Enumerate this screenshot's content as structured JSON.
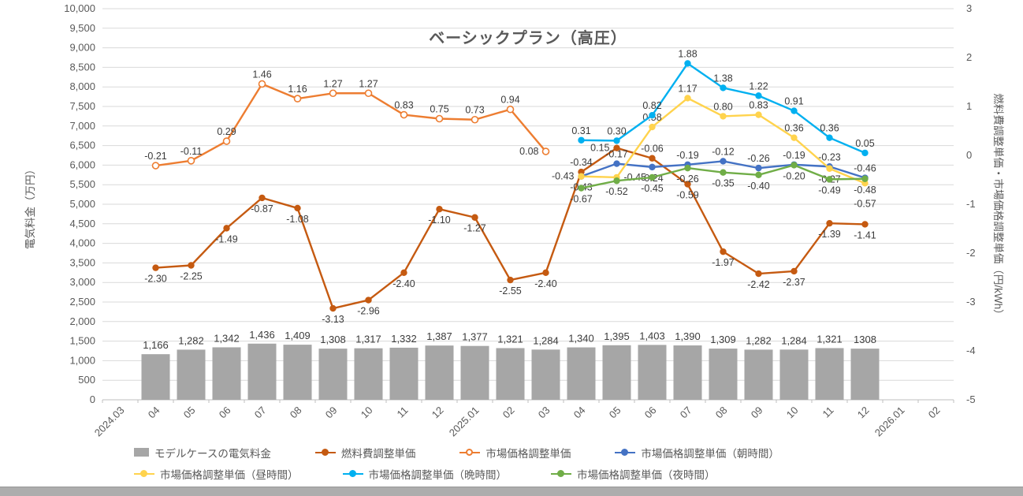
{
  "chart_data": {
    "type": "combo",
    "title": "ベーシックプラン（高圧）",
    "grid": true,
    "legend_position": "bottom",
    "categories": [
      "2024.03",
      "04",
      "05",
      "06",
      "07",
      "08",
      "09",
      "10",
      "11",
      "12",
      "2025.01",
      "02",
      "03",
      "04",
      "05",
      "06",
      "07",
      "08",
      "09",
      "10",
      "11",
      "12",
      "2026.01",
      "02"
    ],
    "left_axis": {
      "label": "電気料金（万円）",
      "min": 0,
      "max": 10000,
      "step": 500,
      "ticks": [
        "0",
        "500",
        "1,000",
        "1,500",
        "2,000",
        "2,500",
        "3,000",
        "3,500",
        "4,000",
        "4,500",
        "5,000",
        "5,500",
        "6,000",
        "6,500",
        "7,000",
        "7,500",
        "8,000",
        "8,500",
        "9,000",
        "9,500",
        "10,000"
      ]
    },
    "right_axis": {
      "label": "燃料費調整単価・市場価格調整単価（円/kWh）",
      "min": -5,
      "max": 3,
      "step": 1,
      "ticks": [
        "-5",
        "-4",
        "-3",
        "-2",
        "-1",
        "0",
        "1",
        "2",
        "3"
      ]
    },
    "bar_series": {
      "key": "model-case-bill",
      "name": "モデルケースの電気料金",
      "color": "#A6A6A6",
      "start_index": 1,
      "values": [
        1166,
        1282,
        1342,
        1436,
        1409,
        1308,
        1317,
        1332,
        1387,
        1377,
        1321,
        1284,
        1340,
        1395,
        1403,
        1390,
        1309,
        1282,
        1284,
        1321,
        1308
      ],
      "labels": [
        "1,166",
        "1,282",
        "1,342",
        "1,436",
        "1,409",
        "1,308",
        "1,317",
        "1,332",
        "1,387",
        "1,377",
        "1,321",
        "1,284",
        "1,340",
        "1,395",
        "1,403",
        "1,390",
        "1,309",
        "1,282",
        "1,284",
        "1,321",
        "1308"
      ]
    },
    "line_series": [
      {
        "key": "fuel-cost",
        "name": "燃料費調整単価",
        "color": "#C55A11",
        "marker": "filled",
        "start_index": 1,
        "values": [
          -2.3,
          -2.25,
          -1.49,
          -0.87,
          -1.08,
          -3.13,
          -2.96,
          -2.4,
          -1.1,
          -1.27,
          -2.55,
          -2.4,
          -0.34,
          0.15,
          -0.06,
          -0.59,
          -1.97,
          -2.42,
          -2.37,
          -1.39,
          -1.41
        ],
        "labels": [
          "-2.30",
          "-2.25",
          "-1.49",
          "-0.87",
          "-1.08",
          "-3.13",
          "-2.96",
          "-2.40",
          "-1.10",
          "-1.27",
          "-2.55",
          "-2.40",
          "-0.34",
          "0.15",
          "-0.06",
          "-0.59",
          "-1.97",
          "-2.42",
          "-2.37",
          "-1.39",
          "-1.41"
        ],
        "label_pos": [
          "b",
          "b",
          "b",
          "b",
          "b",
          "b",
          "b",
          "b",
          "b",
          "b",
          "b",
          "b",
          "a",
          "l",
          "a",
          "b",
          "b",
          "b",
          "b",
          "b",
          "b"
        ]
      },
      {
        "key": "market-price",
        "name": "市場価格調整単価",
        "color": "#ED7D31",
        "marker": "open",
        "start_index": 1,
        "values": [
          -0.21,
          -0.11,
          0.29,
          1.46,
          1.16,
          1.27,
          1.27,
          0.83,
          0.75,
          0.73,
          0.94,
          0.08
        ],
        "labels": [
          "-0.21",
          "-0.11",
          "0.29",
          "1.46",
          "1.16",
          "1.27",
          "1.27",
          "0.83",
          "0.75",
          "0.73",
          "0.94",
          "0.08"
        ],
        "label_pos": [
          "a",
          "a",
          "a",
          "a",
          "a",
          "a",
          "a",
          "a",
          "a",
          "a",
          "a",
          "l"
        ]
      },
      {
        "key": "market-morning",
        "name": "市場価格調整単価（朝時間）",
        "color": "#4472C4",
        "marker": "filled",
        "start_index": 13,
        "values": [
          -0.43,
          -0.17,
          -0.24,
          -0.19,
          -0.12,
          -0.26,
          -0.19,
          -0.23,
          -0.46
        ],
        "labels": [
          "-0.43",
          "-0.17",
          "-0.24",
          "-0.19",
          "-0.12",
          "-0.26",
          "-0.19",
          "-0.23",
          "-0.46"
        ],
        "label_pos": [
          "l",
          "a",
          "b",
          "a",
          "a",
          "a",
          "a",
          "a",
          "a"
        ]
      },
      {
        "key": "market-day",
        "name": "市場価格調整単価（昼時間）",
        "color": "#FFD34D",
        "marker": "filled",
        "start_index": 13,
        "values": [
          -0.43,
          -0.45,
          0.58,
          1.17,
          0.8,
          0.83,
          0.36,
          -0.27,
          -0.57
        ],
        "labels": [
          "-0.43",
          "-0.45",
          "0.58",
          "1.17",
          "0.80",
          "0.83",
          "0.36",
          "-0.27",
          "-0.57"
        ],
        "label_pos": [
          "b",
          "r",
          "a",
          "a",
          "a",
          "a",
          "a",
          "b",
          "B"
        ]
      },
      {
        "key": "market-evening",
        "name": "市場価格調整単価（晩時間）",
        "color": "#00B0F0",
        "marker": "filled",
        "start_index": 13,
        "values": [
          0.31,
          0.3,
          0.82,
          1.88,
          1.38,
          1.22,
          0.91,
          0.36,
          0.05
        ],
        "labels": [
          "0.31",
          "0.30",
          "0.82",
          "1.88",
          "1.38",
          "1.22",
          "0.91",
          "0.36",
          "0.05"
        ],
        "label_pos": [
          "a",
          "a",
          "a",
          "a",
          "a",
          "a",
          "a",
          "a",
          "a"
        ]
      },
      {
        "key": "market-night",
        "name": "市場価格調整単価（夜時間）",
        "color": "#70AD47",
        "marker": "filled",
        "start_index": 13,
        "values": [
          -0.67,
          -0.52,
          -0.45,
          -0.26,
          -0.35,
          -0.4,
          -0.2,
          -0.49,
          -0.48
        ],
        "labels": [
          "-0.67",
          "-0.52",
          "-0.45",
          "-0.26",
          "-0.35",
          "-0.40",
          "-0.20",
          "-0.49",
          "-0.48"
        ],
        "label_pos": [
          "b",
          "b",
          "b",
          "b",
          "b",
          "b",
          "b",
          "b",
          "b"
        ]
      }
    ],
    "legend_rows": [
      [
        {
          "key": "model-case-bill",
          "label": "モデルケースの電気料金",
          "swatch": "bar",
          "color": "#A6A6A6"
        },
        {
          "key": "fuel-cost",
          "label": "燃料費調整単価",
          "swatch": "line-filled",
          "color": "#C55A11"
        },
        {
          "key": "market-price",
          "label": "市場価格調整単価",
          "swatch": "line-open",
          "color": "#ED7D31"
        },
        {
          "key": "market-morning",
          "label": "市場価格調整単価（朝時間）",
          "swatch": "line-filled",
          "color": "#4472C4"
        }
      ],
      [
        {
          "key": "market-day",
          "label": "市場価格調整単価（昼時間）",
          "swatch": "line-filled",
          "color": "#FFD34D"
        },
        {
          "key": "market-evening",
          "label": "市場価格調整単価（晩時間）",
          "swatch": "line-filled",
          "color": "#00B0F0"
        },
        {
          "key": "market-night",
          "label": "市場価格調整単価（夜時間）",
          "swatch": "line-filled",
          "color": "#70AD47"
        }
      ]
    ]
  }
}
